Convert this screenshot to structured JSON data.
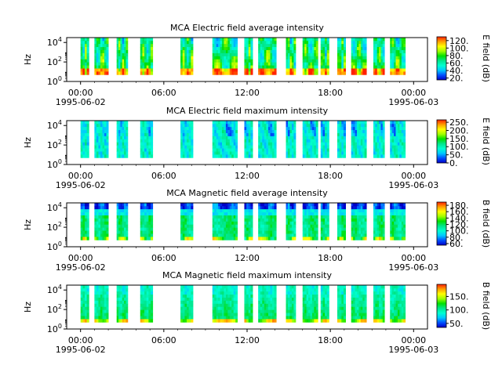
{
  "figure": {
    "x_tick_labels": [
      "00:00",
      "06:00",
      "12:00",
      "18:00",
      "00:00"
    ],
    "x_tick_hours": [
      0,
      6,
      12,
      18,
      24
    ],
    "x_range_hours": [
      -1,
      25
    ],
    "date_labels": [
      {
        "hour": 0,
        "text": "1995-06-02"
      },
      {
        "hour": 24,
        "text": "1995-06-03"
      }
    ],
    "y_ticks": [
      {
        "base": "10",
        "exp": "0"
      },
      {
        "base": "10",
        "exp": "2"
      },
      {
        "base": "10",
        "exp": "4"
      }
    ],
    "y_range_log10": [
      0,
      4.5
    ],
    "y_label": "Hz",
    "colormap": [
      "#0000c8",
      "#0050ff",
      "#00c8ff",
      "#00ffd0",
      "#00e68c",
      "#00e000",
      "#a0ff00",
      "#ffff00",
      "#ffa000",
      "#ff2000"
    ]
  },
  "panels": [
    {
      "title": "MCA  Electric field average intensity",
      "colorbar_label": "E field (dB)",
      "colorbar_ticks": [
        "120.",
        "100.",
        "80.",
        "60.",
        "40.",
        "20."
      ],
      "colorbar_values": [
        120,
        100,
        80,
        60,
        40,
        20
      ],
      "colorbar_range": [
        15,
        130
      ],
      "style": "e_avg"
    },
    {
      "title": "MCA  Electric field maximum intensity",
      "colorbar_label": "E field (dB)",
      "colorbar_ticks": [
        "250.",
        "200.",
        "150.",
        "100.",
        "50.",
        "0."
      ],
      "colorbar_values": [
        250,
        200,
        150,
        100,
        50,
        0
      ],
      "colorbar_range": [
        0,
        265
      ],
      "style": "e_max"
    },
    {
      "title": "MCA  Magnetic field average intensity",
      "colorbar_label": "B field (dB)",
      "colorbar_ticks": [
        "180.",
        "160.",
        "140.",
        "120.",
        "100.",
        "80.",
        "60."
      ],
      "colorbar_values": [
        180,
        160,
        140,
        120,
        100,
        80,
        60
      ],
      "colorbar_range": [
        55,
        190
      ],
      "style": "b_avg"
    },
    {
      "title": "MCA  Magnetic field maximum intensity",
      "colorbar_label": "B field (dB)",
      "colorbar_ticks": [
        "150.",
        "100.",
        "50."
      ],
      "colorbar_values": [
        150,
        100,
        50
      ],
      "colorbar_range": [
        35,
        195
      ],
      "style": "b_max"
    }
  ],
  "chart_data": {
    "type": "heatmap",
    "x_unit": "UT hours from 1995-06-02 00:00",
    "y_unit": "Hz (log scale)",
    "frequency_range_hz": [
      5,
      30000
    ],
    "data_segments_hours": [
      [
        0.0,
        0.6
      ],
      [
        1.0,
        2.0
      ],
      [
        2.6,
        3.4
      ],
      [
        4.3,
        5.2
      ],
      [
        7.2,
        8.1
      ],
      [
        9.5,
        11.3
      ],
      [
        11.8,
        12.4
      ],
      [
        12.8,
        14.1
      ],
      [
        14.8,
        15.5
      ],
      [
        16.0,
        17.1
      ],
      [
        17.3,
        17.9
      ],
      [
        18.5,
        19.1
      ],
      [
        19.5,
        20.6
      ],
      [
        21.1,
        21.9
      ],
      [
        22.3,
        23.4
      ]
    ]
  }
}
